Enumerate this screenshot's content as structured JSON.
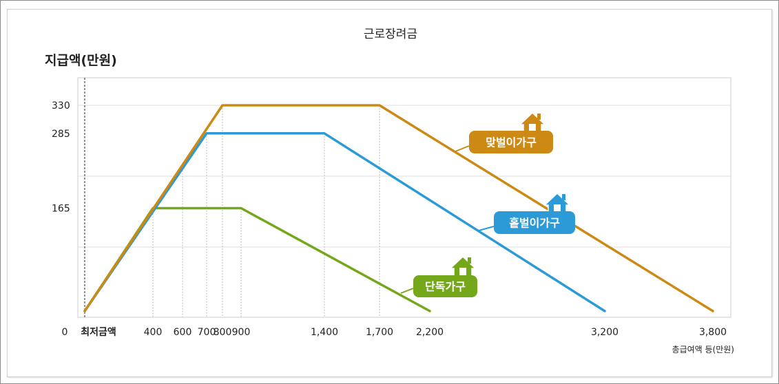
{
  "chart_data": {
    "type": "line",
    "title": "근로장려금",
    "ylabel": "지급액(만원)",
    "xlabel": "총급여액 등(만원)",
    "origin_label": "0",
    "x_start_label": "최저금액",
    "x_ticks": [
      {
        "value": 400,
        "label": "400"
      },
      {
        "value": 600,
        "label": "600"
      },
      {
        "value": 700,
        "label": "700"
      },
      {
        "value": 800,
        "label": "800"
      },
      {
        "value": 900,
        "label": "900"
      },
      {
        "value": 1400,
        "label": "1,400"
      },
      {
        "value": 1700,
        "label": "1,700"
      },
      {
        "value": 2200,
        "label": "2,200"
      },
      {
        "value": 3200,
        "label": "3,200"
      },
      {
        "value": 3800,
        "label": "3,800"
      }
    ],
    "y_ticks": [
      {
        "value": 165,
        "label": "165"
      },
      {
        "value": 285,
        "label": "285"
      },
      {
        "value": 330,
        "label": "330"
      }
    ],
    "series": [
      {
        "name": "맞벌이가구",
        "color": "#cc8a14",
        "points": [
          [
            0,
            0
          ],
          [
            800,
            330
          ],
          [
            1700,
            330
          ],
          [
            3800,
            0
          ]
        ]
      },
      {
        "name": "홑벌이가구",
        "color": "#2b9ad6",
        "points": [
          [
            0,
            0
          ],
          [
            700,
            285
          ],
          [
            1400,
            285
          ],
          [
            3200,
            0
          ]
        ]
      },
      {
        "name": "단독가구",
        "color": "#74a81a",
        "points": [
          [
            0,
            0
          ],
          [
            400,
            165
          ],
          [
            900,
            165
          ],
          [
            2200,
            0
          ]
        ]
      }
    ],
    "grid": true
  }
}
